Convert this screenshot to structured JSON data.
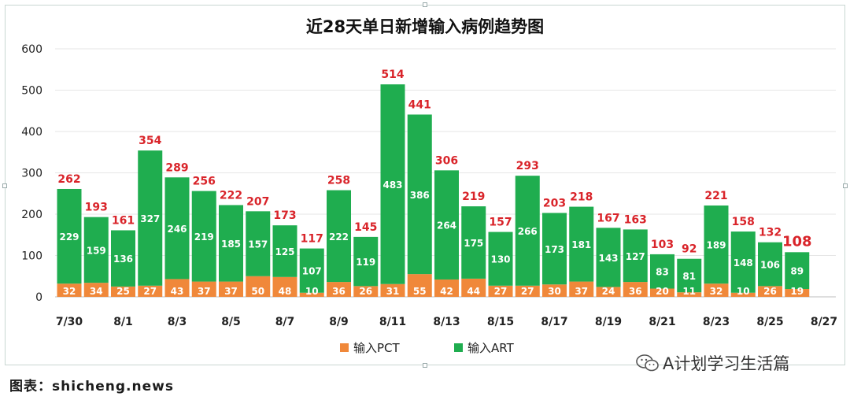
{
  "chart_data": {
    "type": "bar",
    "stacked": true,
    "title": "近28天单日新增输入病例趋势图",
    "categories": [
      "7/30",
      "7/31",
      "8/1",
      "8/2",
      "8/3",
      "8/4",
      "8/5",
      "8/6",
      "8/7",
      "8/8",
      "8/9",
      "8/10",
      "8/11",
      "8/12",
      "8/13",
      "8/14",
      "8/15",
      "8/16",
      "8/17",
      "8/18",
      "8/19",
      "8/20",
      "8/21",
      "8/22",
      "8/23",
      "8/24",
      "8/25",
      "8/26"
    ],
    "x_tick_labels": [
      "7/30",
      "8/1",
      "8/3",
      "8/5",
      "8/7",
      "8/9",
      "8/11",
      "8/13",
      "8/15",
      "8/17",
      "8/19",
      "8/21",
      "8/23",
      "8/25",
      "8/27"
    ],
    "series": [
      {
        "name": "输入PCT",
        "color": "#f0883a",
        "values": [
          32,
          34,
          25,
          27,
          43,
          37,
          37,
          50,
          48,
          10,
          36,
          26,
          31,
          55,
          42,
          44,
          27,
          27,
          30,
          37,
          24,
          36,
          20,
          11,
          32,
          10,
          26,
          19
        ]
      },
      {
        "name": "输入ART",
        "color": "#1fad4f",
        "values": [
          229,
          159,
          136,
          327,
          246,
          219,
          185,
          157,
          125,
          107,
          222,
          119,
          483,
          386,
          264,
          175,
          130,
          266,
          173,
          181,
          143,
          127,
          83,
          81,
          189,
          148,
          106,
          89
        ]
      }
    ],
    "totals": [
      262,
      193,
      161,
      354,
      289,
      256,
      222,
      207,
      173,
      117,
      258,
      145,
      514,
      441,
      306,
      219,
      157,
      293,
      203,
      218,
      167,
      163,
      103,
      92,
      221,
      158,
      132,
      108
    ],
    "total_label_color": "#d9242a",
    "ylim": [
      0,
      600
    ],
    "yticks": [
      "0",
      "100",
      "200",
      "300",
      "400",
      "500",
      "600"
    ],
    "grid": true,
    "legend_position": "bottom"
  },
  "watermark": "A计划学习生活篇",
  "source": "图表：shicheng.news"
}
